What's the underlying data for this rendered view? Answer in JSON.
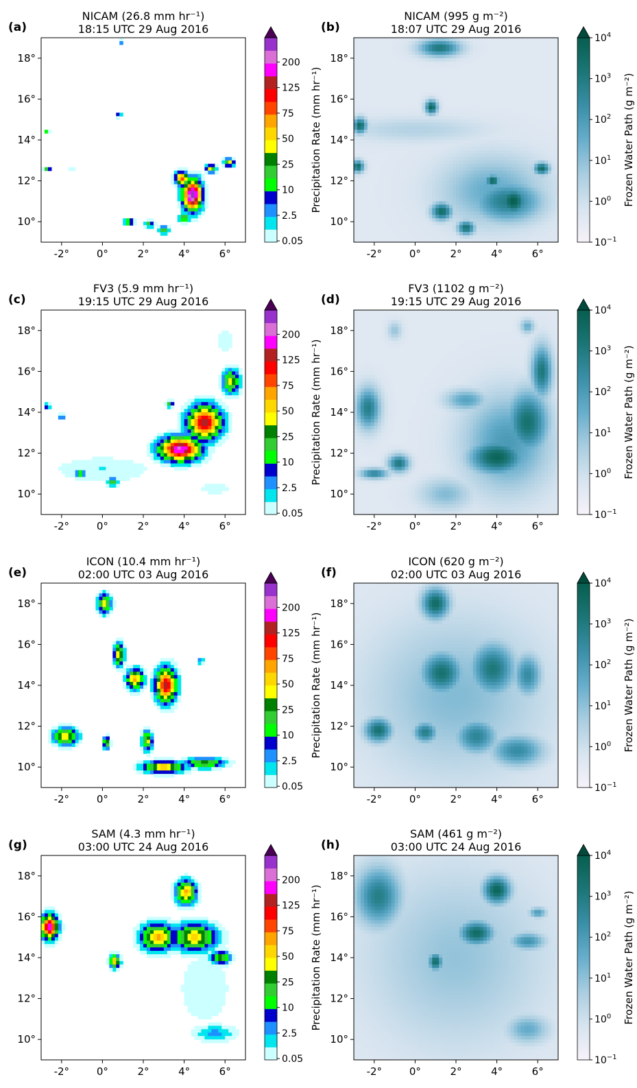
{
  "figure": {
    "precip_colorbar": {
      "label": "Precipitation Rate (mm hr⁻¹)",
      "bounds": [
        0.05,
        2.5,
        10,
        25,
        50,
        75,
        125,
        200
      ],
      "tick_labels": [
        "0.05",
        "2.5",
        "10",
        "25",
        "50",
        "75",
        "125",
        "200"
      ],
      "colors": [
        "#ccffff",
        "#00e5ee",
        "#1e90ff",
        "#0000cd",
        "#00ff00",
        "#32cd32",
        "#008000",
        "#ffff00",
        "#ffd700",
        "#ffa500",
        "#ff4500",
        "#ff0000",
        "#b22222",
        "#ff00ff",
        "#da70d6",
        "#9932cc"
      ],
      "extend_color": "#4b0055"
    },
    "fwp_colorbar": {
      "label": "Frozen Water Path (g m⁻²)",
      "range_exponent": [
        -1,
        4
      ],
      "tick_base": "10",
      "tick_exponents": [
        "−1",
        "0",
        "1",
        "2",
        "3",
        "4"
      ],
      "colors": [
        "#f7f2f9",
        "#d7e4ef",
        "#a9cde0",
        "#67aecc",
        "#3a8fa8",
        "#1b7676",
        "#075e4f"
      ],
      "extend_color": "#024a3c"
    },
    "axes": {
      "xticks": [
        "-2°",
        "0°",
        "2°",
        "4°",
        "6°"
      ],
      "yticks": [
        "10°",
        "12°",
        "14°",
        "16°",
        "18°"
      ]
    }
  },
  "chart_data": [
    {
      "panel": "(a)",
      "type": "heatmap",
      "model": "NICAM",
      "field": "Precipitation Rate",
      "title_line1": "NICAM (26.8 mm hr⁻¹)",
      "title_line2": "18:15 UTC 29 Aug 2016",
      "xlim": [
        -3,
        7
      ],
      "ylim": [
        9,
        19
      ],
      "colorbar": "precip",
      "features": [
        {
          "lon": 4.4,
          "lat": 11.3,
          "rx": 0.55,
          "ry": 0.9,
          "intensity": 1.0
        },
        {
          "lon": 3.9,
          "lat": 12.1,
          "rx": 0.4,
          "ry": 0.4,
          "intensity": 0.7
        },
        {
          "lon": 5.3,
          "lat": 12.6,
          "rx": 0.3,
          "ry": 0.25,
          "intensity": 0.5
        },
        {
          "lon": 6.2,
          "lat": 12.9,
          "rx": 0.3,
          "ry": 0.25,
          "intensity": 0.5
        },
        {
          "lon": 4.0,
          "lat": 10.2,
          "rx": 0.3,
          "ry": 0.25,
          "intensity": 0.45
        },
        {
          "lon": 3.0,
          "lat": 9.6,
          "rx": 0.3,
          "ry": 0.2,
          "intensity": 0.45
        },
        {
          "lon": 1.3,
          "lat": 10.0,
          "rx": 0.3,
          "ry": 0.2,
          "intensity": 0.45
        },
        {
          "lon": 2.3,
          "lat": 9.9,
          "rx": 0.25,
          "ry": 0.2,
          "intensity": 0.4
        },
        {
          "lon": 0.8,
          "lat": 15.2,
          "rx": 0.15,
          "ry": 0.12,
          "intensity": 0.4
        },
        {
          "lon": -2.7,
          "lat": 14.4,
          "rx": 0.12,
          "ry": 0.12,
          "intensity": 0.4
        },
        {
          "lon": -2.7,
          "lat": 12.6,
          "rx": 0.2,
          "ry": 0.12,
          "intensity": 0.4
        },
        {
          "lon": -1.5,
          "lat": 12.6,
          "rx": 0.1,
          "ry": 0.08,
          "intensity": 0.3
        },
        {
          "lon": 0.9,
          "lat": 18.8,
          "rx": 0.15,
          "ry": 0.12,
          "intensity": 0.3
        }
      ]
    },
    {
      "panel": "(b)",
      "type": "heatmap",
      "model": "NICAM",
      "field": "Frozen Water Path",
      "title_line1": "NICAM (995 g m⁻²)",
      "title_line2": "18:07 UTC 29 Aug 2016",
      "xlim": [
        -3,
        7
      ],
      "ylim": [
        9,
        19
      ],
      "colorbar": "fwp",
      "features": [
        {
          "lon": 3.8,
          "lat": 11.5,
          "rx": 3.0,
          "ry": 2.0,
          "intensity": 0.45
        },
        {
          "lon": 4.5,
          "lat": 11.0,
          "rx": 2.0,
          "ry": 1.2,
          "intensity": 0.75
        },
        {
          "lon": 4.8,
          "lat": 11.0,
          "rx": 0.8,
          "ry": 0.8,
          "intensity": 1.0
        },
        {
          "lon": 3.8,
          "lat": 12.0,
          "rx": 0.4,
          "ry": 0.35,
          "intensity": 0.95
        },
        {
          "lon": 6.2,
          "lat": 12.6,
          "rx": 0.45,
          "ry": 0.35,
          "intensity": 0.9
        },
        {
          "lon": 1.3,
          "lat": 10.5,
          "rx": 0.6,
          "ry": 0.5,
          "intensity": 0.9
        },
        {
          "lon": 2.5,
          "lat": 9.7,
          "rx": 0.5,
          "ry": 0.4,
          "intensity": 0.85
        },
        {
          "lon": 0.8,
          "lat": 15.6,
          "rx": 0.35,
          "ry": 0.4,
          "intensity": 0.95
        },
        {
          "lon": -2.7,
          "lat": 14.7,
          "rx": 0.4,
          "ry": 0.45,
          "intensity": 0.9
        },
        {
          "lon": -2.8,
          "lat": 12.7,
          "rx": 0.35,
          "ry": 0.35,
          "intensity": 0.9
        },
        {
          "lon": 1.2,
          "lat": 18.5,
          "rx": 1.2,
          "ry": 0.5,
          "intensity": 0.8
        },
        {
          "lon": 0.0,
          "lat": 14.5,
          "rx": 4.0,
          "ry": 0.7,
          "intensity": 0.2
        }
      ]
    },
    {
      "panel": "(c)",
      "type": "heatmap",
      "model": "FV3",
      "field": "Precipitation Rate",
      "title_line1": "FV3 (5.9 mm hr⁻¹)",
      "title_line2": "19:15 UTC 29 Aug 2016",
      "xlim": [
        -3,
        7
      ],
      "ylim": [
        9,
        19
      ],
      "colorbar": "precip",
      "features": [
        {
          "lon": 0.0,
          "lat": 11.2,
          "rx": 3.0,
          "ry": 0.8,
          "intensity": 0.12
        },
        {
          "lon": 3.8,
          "lat": 12.2,
          "rx": 1.2,
          "ry": 0.7,
          "intensity": 0.9
        },
        {
          "lon": 5.0,
          "lat": 13.5,
          "rx": 1.0,
          "ry": 1.0,
          "intensity": 0.8
        },
        {
          "lon": 6.3,
          "lat": 15.5,
          "rx": 0.5,
          "ry": 0.7,
          "intensity": 0.5
        },
        {
          "lon": 3.3,
          "lat": 14.4,
          "rx": 0.2,
          "ry": 0.2,
          "intensity": 0.4
        },
        {
          "lon": 0.5,
          "lat": 10.6,
          "rx": 0.3,
          "ry": 0.25,
          "intensity": 0.4
        },
        {
          "lon": -1.1,
          "lat": 11.0,
          "rx": 0.3,
          "ry": 0.2,
          "intensity": 0.4
        },
        {
          "lon": -2.7,
          "lat": 14.3,
          "rx": 0.15,
          "ry": 0.15,
          "intensity": 0.35
        },
        {
          "lon": -2.0,
          "lat": 13.8,
          "rx": 0.15,
          "ry": 0.15,
          "intensity": 0.35
        },
        {
          "lon": 5.5,
          "lat": 10.3,
          "rx": 1.0,
          "ry": 0.4,
          "intensity": 0.1
        },
        {
          "lon": 6.0,
          "lat": 17.5,
          "rx": 0.4,
          "ry": 0.8,
          "intensity": 0.12
        }
      ]
    },
    {
      "panel": "(d)",
      "type": "heatmap",
      "model": "FV3",
      "field": "Frozen Water Path",
      "title_line1": "FV3 (1102 g m⁻²)",
      "title_line2": "19:15 UTC 29 Aug 2016",
      "xlim": [
        -3,
        7
      ],
      "ylim": [
        9,
        19
      ],
      "colorbar": "fwp",
      "features": [
        {
          "lon": 4.5,
          "lat": 12.5,
          "rx": 2.5,
          "ry": 2.8,
          "intensity": 0.55
        },
        {
          "lon": 4.0,
          "lat": 11.8,
          "rx": 1.6,
          "ry": 1.0,
          "intensity": 0.95
        },
        {
          "lon": 5.5,
          "lat": 13.5,
          "rx": 1.2,
          "ry": 1.8,
          "intensity": 0.85
        },
        {
          "lon": 6.2,
          "lat": 16.0,
          "rx": 0.6,
          "ry": 1.5,
          "intensity": 0.8
        },
        {
          "lon": -2.3,
          "lat": 14.2,
          "rx": 0.7,
          "ry": 1.2,
          "intensity": 0.75
        },
        {
          "lon": 2.5,
          "lat": 14.6,
          "rx": 1.2,
          "ry": 0.6,
          "intensity": 0.5
        },
        {
          "lon": -0.8,
          "lat": 11.5,
          "rx": 0.6,
          "ry": 0.5,
          "intensity": 0.8
        },
        {
          "lon": -2.0,
          "lat": 11.0,
          "rx": 0.8,
          "ry": 0.3,
          "intensity": 0.7
        },
        {
          "lon": 1.5,
          "lat": 10.0,
          "rx": 1.5,
          "ry": 0.9,
          "intensity": 0.35
        },
        {
          "lon": 5.5,
          "lat": 18.2,
          "rx": 0.4,
          "ry": 0.4,
          "intensity": 0.45
        },
        {
          "lon": -1.0,
          "lat": 18.0,
          "rx": 0.4,
          "ry": 0.5,
          "intensity": 0.3
        }
      ]
    },
    {
      "panel": "(e)",
      "type": "heatmap",
      "model": "ICON",
      "field": "Precipitation Rate",
      "title_line1": "ICON (10.4 mm hr⁻¹)",
      "title_line2": "02:00 UTC 03 Aug 2016",
      "xlim": [
        -3,
        7
      ],
      "ylim": [
        9,
        19
      ],
      "colorbar": "precip",
      "features": [
        {
          "lon": 0.1,
          "lat": 18.0,
          "rx": 0.4,
          "ry": 0.6,
          "intensity": 0.5
        },
        {
          "lon": 0.8,
          "lat": 15.5,
          "rx": 0.3,
          "ry": 0.7,
          "intensity": 0.55
        },
        {
          "lon": 1.6,
          "lat": 14.3,
          "rx": 0.5,
          "ry": 0.6,
          "intensity": 0.6
        },
        {
          "lon": 3.1,
          "lat": 14.0,
          "rx": 0.6,
          "ry": 1.0,
          "intensity": 0.8
        },
        {
          "lon": -1.8,
          "lat": 11.5,
          "rx": 0.7,
          "ry": 0.5,
          "intensity": 0.55
        },
        {
          "lon": 0.2,
          "lat": 11.2,
          "rx": 0.2,
          "ry": 0.35,
          "intensity": 0.5
        },
        {
          "lon": 2.2,
          "lat": 11.3,
          "rx": 0.3,
          "ry": 0.6,
          "intensity": 0.5
        },
        {
          "lon": 3.0,
          "lat": 10.0,
          "rx": 1.2,
          "ry": 0.35,
          "intensity": 0.6
        },
        {
          "lon": 5.0,
          "lat": 10.2,
          "rx": 1.2,
          "ry": 0.3,
          "intensity": 0.45
        },
        {
          "lon": 4.8,
          "lat": 15.2,
          "rx": 0.2,
          "ry": 0.2,
          "intensity": 0.25
        }
      ]
    },
    {
      "panel": "(f)",
      "type": "heatmap",
      "model": "ICON",
      "field": "Frozen Water Path",
      "title_line1": "ICON (620 g m⁻²)",
      "title_line2": "02:00 UTC 03 Aug 2016",
      "xlim": [
        -3,
        7
      ],
      "ylim": [
        9,
        19
      ],
      "colorbar": "fwp",
      "features": [
        {
          "lon": 2.0,
          "lat": 13.5,
          "rx": 5.0,
          "ry": 4.5,
          "intensity": 0.35
        },
        {
          "lon": 1.0,
          "lat": 18.0,
          "rx": 0.8,
          "ry": 0.9,
          "intensity": 0.9
        },
        {
          "lon": 1.3,
          "lat": 14.6,
          "rx": 1.2,
          "ry": 1.2,
          "intensity": 0.85
        },
        {
          "lon": 3.8,
          "lat": 14.8,
          "rx": 1.3,
          "ry": 1.5,
          "intensity": 0.8
        },
        {
          "lon": 5.5,
          "lat": 14.5,
          "rx": 0.8,
          "ry": 1.2,
          "intensity": 0.65
        },
        {
          "lon": -1.8,
          "lat": 11.8,
          "rx": 0.8,
          "ry": 0.7,
          "intensity": 0.85
        },
        {
          "lon": 0.5,
          "lat": 11.7,
          "rx": 0.7,
          "ry": 0.6,
          "intensity": 0.75
        },
        {
          "lon": 3.0,
          "lat": 11.5,
          "rx": 1.2,
          "ry": 1.0,
          "intensity": 0.7
        },
        {
          "lon": 5.0,
          "lat": 10.8,
          "rx": 1.5,
          "ry": 0.9,
          "intensity": 0.65
        }
      ]
    },
    {
      "panel": "(g)",
      "type": "heatmap",
      "model": "SAM",
      "field": "Precipitation Rate",
      "title_line1": "SAM (4.3 mm hr⁻¹)",
      "title_line2": "03:00 UTC 24 Aug 2016",
      "xlim": [
        -3,
        7
      ],
      "ylim": [
        9,
        19
      ],
      "colorbar": "precip",
      "features": [
        {
          "lon": -2.6,
          "lat": 15.5,
          "rx": 0.5,
          "ry": 0.7,
          "intensity": 0.85
        },
        {
          "lon": 0.6,
          "lat": 13.8,
          "rx": 0.3,
          "ry": 0.4,
          "intensity": 0.6
        },
        {
          "lon": 2.7,
          "lat": 15.0,
          "rx": 1.0,
          "ry": 0.8,
          "intensity": 0.6
        },
        {
          "lon": 4.5,
          "lat": 15.0,
          "rx": 1.3,
          "ry": 0.8,
          "intensity": 0.55
        },
        {
          "lon": 4.1,
          "lat": 17.2,
          "rx": 0.6,
          "ry": 0.7,
          "intensity": 0.6
        },
        {
          "lon": 5.8,
          "lat": 14.0,
          "rx": 0.6,
          "ry": 0.4,
          "intensity": 0.45
        },
        {
          "lon": 5.0,
          "lat": 12.5,
          "rx": 1.8,
          "ry": 2.5,
          "intensity": 0.1
        },
        {
          "lon": 5.5,
          "lat": 10.3,
          "rx": 1.3,
          "ry": 0.5,
          "intensity": 0.2
        }
      ]
    },
    {
      "panel": "(h)",
      "type": "heatmap",
      "model": "SAM",
      "field": "Frozen Water Path",
      "title_line1": "SAM (461 g m⁻²)",
      "title_line2": "03:00 UTC 24 Aug 2016",
      "xlim": [
        -3,
        7
      ],
      "ylim": [
        9,
        19
      ],
      "colorbar": "fwp",
      "features": [
        {
          "lon": 2.0,
          "lat": 14.0,
          "rx": 5.0,
          "ry": 5.0,
          "intensity": 0.3
        },
        {
          "lon": -1.8,
          "lat": 17.0,
          "rx": 1.3,
          "ry": 1.7,
          "intensity": 0.75
        },
        {
          "lon": 4.0,
          "lat": 17.3,
          "rx": 0.8,
          "ry": 0.8,
          "intensity": 0.95
        },
        {
          "lon": 3.0,
          "lat": 15.2,
          "rx": 1.0,
          "ry": 0.7,
          "intensity": 0.9
        },
        {
          "lon": 1.0,
          "lat": 13.8,
          "rx": 0.4,
          "ry": 0.5,
          "intensity": 0.9
        },
        {
          "lon": 5.5,
          "lat": 14.8,
          "rx": 1.0,
          "ry": 0.5,
          "intensity": 0.6
        },
        {
          "lon": 6.0,
          "lat": 16.2,
          "rx": 0.5,
          "ry": 0.3,
          "intensity": 0.55
        },
        {
          "lon": 5.5,
          "lat": 10.5,
          "rx": 1.2,
          "ry": 0.8,
          "intensity": 0.45
        }
      ]
    }
  ]
}
